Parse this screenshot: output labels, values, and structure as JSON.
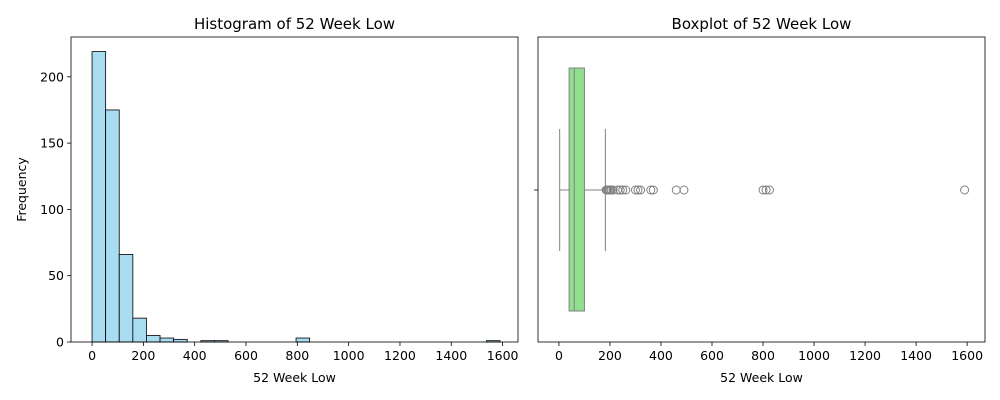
{
  "chart_data": [
    {
      "type": "bar",
      "subtype": "histogram",
      "title": "Histogram of 52 Week Low",
      "xlabel": "52 Week Low",
      "ylabel": "Frequency",
      "xlim": [
        -82,
        1660
      ],
      "ylim": [
        0,
        230
      ],
      "bin_width": 53,
      "bin_start": 0,
      "counts": [
        219,
        175,
        66,
        18,
        5,
        3,
        2,
        0,
        1,
        1,
        0,
        0,
        0,
        0,
        0,
        3,
        0,
        0,
        0,
        0,
        0,
        0,
        0,
        0,
        0,
        0,
        0,
        0,
        0,
        1
      ],
      "bar_color": "#a8dcf0",
      "edge_color": "#000000",
      "xticks": [
        0,
        200,
        400,
        600,
        800,
        1000,
        1200,
        1400,
        1600
      ],
      "yticks": [
        0,
        50,
        100,
        150,
        200
      ],
      "grid": false
    },
    {
      "type": "boxplot",
      "title": "Boxplot of 52 Week Low",
      "xlabel": "52 Week Low",
      "ylabel": "",
      "xlim": [
        -82,
        1670
      ],
      "whisker_low": 3,
      "q1": 40,
      "median": 60,
      "q3": 100,
      "whisker_high": 182,
      "outliers": [
        185,
        188,
        192,
        197,
        200,
        205,
        212,
        230,
        240,
        250,
        262,
        300,
        310,
        320,
        360,
        370,
        460,
        490,
        800,
        812,
        825,
        1590
      ],
      "box_color": "#90e090",
      "line_color": "#808080",
      "xticks": [
        0,
        200,
        400,
        600,
        800,
        1000,
        1200,
        1400,
        1600
      ],
      "grid": false
    }
  ]
}
